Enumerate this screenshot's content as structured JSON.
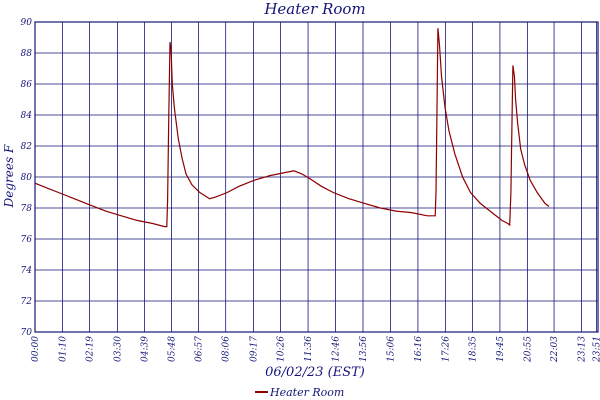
{
  "chart_data": {
    "type": "line",
    "title": "Heater Room",
    "xlabel": "06/02/23 (EST)",
    "ylabel": "Degrees F",
    "ylim": [
      70,
      90
    ],
    "y_ticks": [
      "70",
      "72",
      "74",
      "76",
      "78",
      "80",
      "82",
      "84",
      "86",
      "88",
      "90"
    ],
    "x_tick_labels": [
      "00:00",
      "01:10",
      "02:19",
      "03:30",
      "04:39",
      "05:48",
      "06:57",
      "08:06",
      "09:17",
      "10:26",
      "11:36",
      "12:46",
      "13:56",
      "15:06",
      "16:16",
      "17:26",
      "18:35",
      "19:45",
      "20:55",
      "22:03",
      "23:13",
      "23:51"
    ],
    "x_tick_minutes": [
      0,
      70,
      139,
      210,
      279,
      348,
      417,
      486,
      557,
      626,
      696,
      766,
      836,
      906,
      976,
      1046,
      1115,
      1185,
      1255,
      1323,
      1393,
      1431
    ],
    "xlim_minutes": [
      0,
      1435
    ],
    "grid": true,
    "colors": {
      "series": "#8b0000",
      "axis": "#141478",
      "grid": "#141478"
    },
    "series": [
      {
        "name": "Heater Room",
        "points": [
          [
            0,
            79.6
          ],
          [
            30,
            79.3
          ],
          [
            60,
            79.0
          ],
          [
            100,
            78.6
          ],
          [
            140,
            78.2
          ],
          [
            180,
            77.8
          ],
          [
            220,
            77.5
          ],
          [
            260,
            77.2
          ],
          [
            300,
            77.0
          ],
          [
            330,
            76.8
          ],
          [
            336,
            76.8
          ],
          [
            338,
            78.5
          ],
          [
            341,
            84.0
          ],
          [
            344,
            88.7
          ],
          [
            347,
            88.2
          ],
          [
            350,
            86.0
          ],
          [
            355,
            84.5
          ],
          [
            365,
            82.5
          ],
          [
            375,
            81.2
          ],
          [
            385,
            80.2
          ],
          [
            400,
            79.5
          ],
          [
            420,
            79.0
          ],
          [
            445,
            78.6
          ],
          [
            460,
            78.7
          ],
          [
            490,
            79.0
          ],
          [
            520,
            79.4
          ],
          [
            560,
            79.8
          ],
          [
            600,
            80.1
          ],
          [
            640,
            80.3
          ],
          [
            660,
            80.4
          ],
          [
            680,
            80.2
          ],
          [
            700,
            79.9
          ],
          [
            730,
            79.4
          ],
          [
            760,
            79.0
          ],
          [
            800,
            78.6
          ],
          [
            840,
            78.3
          ],
          [
            880,
            78.0
          ],
          [
            920,
            77.8
          ],
          [
            960,
            77.7
          ],
          [
            1000,
            77.5
          ],
          [
            1020,
            77.5
          ],
          [
            1022,
            79.0
          ],
          [
            1025,
            85.0
          ],
          [
            1027,
            89.6
          ],
          [
            1031,
            88.5
          ],
          [
            1036,
            86.5
          ],
          [
            1045,
            84.5
          ],
          [
            1055,
            83.0
          ],
          [
            1070,
            81.5
          ],
          [
            1090,
            80.0
          ],
          [
            1110,
            79.0
          ],
          [
            1135,
            78.3
          ],
          [
            1160,
            77.8
          ],
          [
            1190,
            77.2
          ],
          [
            1205,
            77.0
          ],
          [
            1210,
            76.9
          ],
          [
            1213,
            79.0
          ],
          [
            1216,
            84.0
          ],
          [
            1218,
            87.2
          ],
          [
            1222,
            86.5
          ],
          [
            1225,
            85.0
          ],
          [
            1230,
            83.5
          ],
          [
            1238,
            81.8
          ],
          [
            1248,
            80.8
          ],
          [
            1262,
            79.8
          ],
          [
            1280,
            79.0
          ],
          [
            1300,
            78.3
          ],
          [
            1310,
            78.1
          ]
        ]
      }
    ]
  }
}
